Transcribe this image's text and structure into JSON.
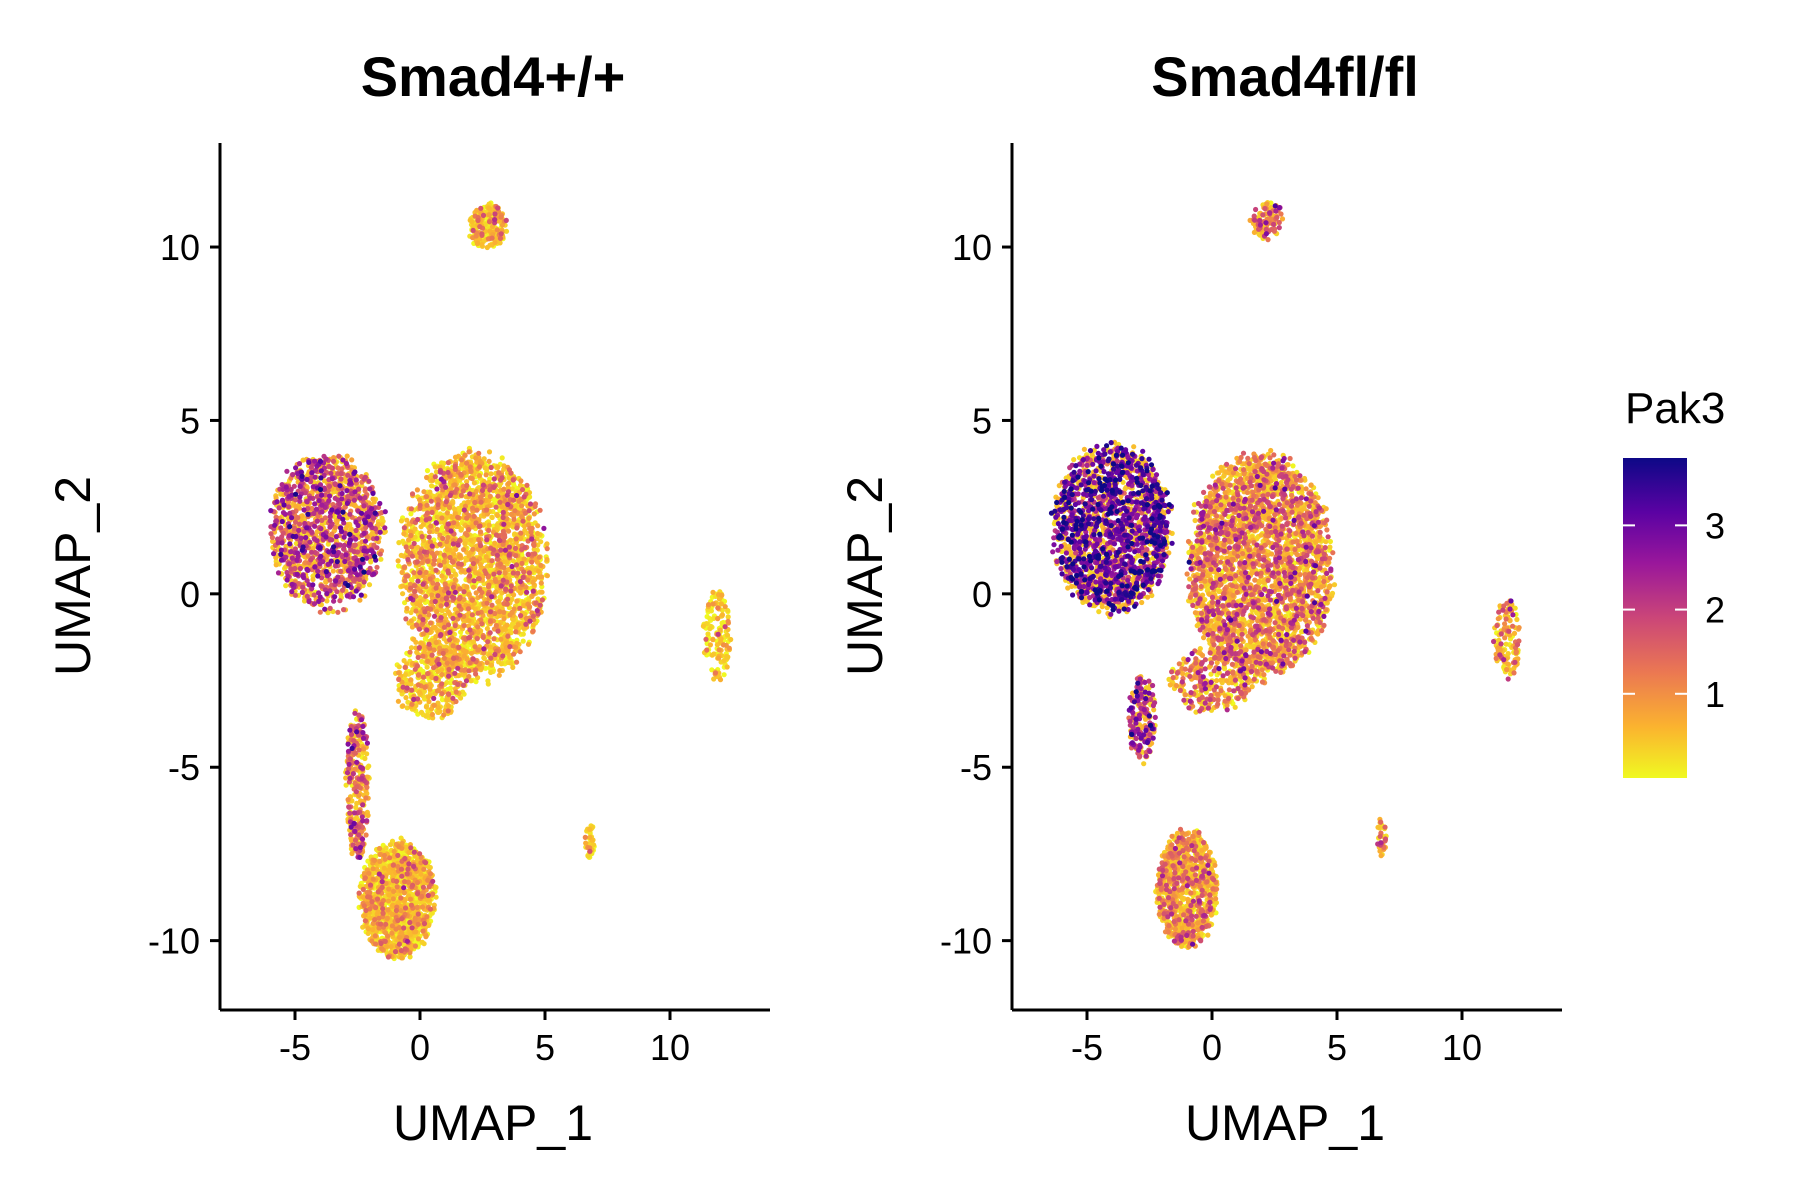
{
  "chart_data": [
    {
      "type": "scatter",
      "title": "Smad4+/+",
      "xlabel": "UMAP_1",
      "ylabel": "UMAP_2",
      "xlim": [
        -8,
        14
      ],
      "ylim": [
        -12,
        13
      ],
      "xticks": [
        -5,
        0,
        5,
        10
      ],
      "yticks": [
        -10,
        -5,
        0,
        5,
        10
      ],
      "color_variable": "Pak3",
      "clusters": [
        {
          "cx": -3.7,
          "cy": 1.8,
          "rx": 2.4,
          "ry": 2.4,
          "n": 1400,
          "mean_expr": 1.9
        },
        {
          "cx": 2.1,
          "cy": 0.8,
          "rx": 3.1,
          "ry": 3.5,
          "n": 2600,
          "mean_expr": 0.7
        },
        {
          "cx": 0.5,
          "cy": -2.5,
          "rx": 1.6,
          "ry": 1.2,
          "n": 350,
          "mean_expr": 0.7
        },
        {
          "cx": -2.5,
          "cy": -5.5,
          "rx": 0.5,
          "ry": 2.3,
          "n": 300,
          "mean_expr": 1.6
        },
        {
          "cx": -0.9,
          "cy": -8.8,
          "rx": 1.6,
          "ry": 1.8,
          "n": 1300,
          "mean_expr": 0.35
        },
        {
          "cx": 2.7,
          "cy": 10.6,
          "rx": 0.8,
          "ry": 0.7,
          "n": 220,
          "mean_expr": 0.6
        },
        {
          "cx": 11.9,
          "cy": -1.2,
          "rx": 0.6,
          "ry": 1.4,
          "n": 150,
          "mean_expr": 0.4
        },
        {
          "cx": 6.8,
          "cy": -7.1,
          "rx": 0.2,
          "ry": 0.6,
          "n": 40,
          "mean_expr": 0.4
        }
      ]
    },
    {
      "type": "scatter",
      "title": "Smad4fl/fl",
      "xlabel": "UMAP_1",
      "ylabel": "UMAP_2",
      "xlim": [
        -8,
        14
      ],
      "ylim": [
        -12,
        13
      ],
      "xticks": [
        -5,
        0,
        5,
        10
      ],
      "yticks": [
        -10,
        -5,
        0,
        5,
        10
      ],
      "color_variable": "Pak3",
      "clusters": [
        {
          "cx": -4.0,
          "cy": 1.9,
          "rx": 2.5,
          "ry": 2.6,
          "n": 1900,
          "mean_expr": 2.9
        },
        {
          "cx": 1.9,
          "cy": 0.8,
          "rx": 3.1,
          "ry": 3.4,
          "n": 3000,
          "mean_expr": 1.2
        },
        {
          "cx": 0.0,
          "cy": -2.5,
          "rx": 1.8,
          "ry": 1.0,
          "n": 300,
          "mean_expr": 1.3
        },
        {
          "cx": -2.8,
          "cy": -3.6,
          "rx": 0.6,
          "ry": 1.4,
          "n": 200,
          "mean_expr": 2.2
        },
        {
          "cx": -1.0,
          "cy": -8.5,
          "rx": 1.3,
          "ry": 1.8,
          "n": 900,
          "mean_expr": 0.9
        },
        {
          "cx": 2.2,
          "cy": 10.8,
          "rx": 0.7,
          "ry": 0.6,
          "n": 100,
          "mean_expr": 1.5
        },
        {
          "cx": 11.8,
          "cy": -1.3,
          "rx": 0.6,
          "ry": 1.2,
          "n": 120,
          "mean_expr": 1.1
        },
        {
          "cx": 6.8,
          "cy": -7.0,
          "rx": 0.2,
          "ry": 0.6,
          "n": 35,
          "mean_expr": 1.3
        }
      ]
    }
  ],
  "legend": {
    "title": "Pak3",
    "ticks": [
      "1",
      "2",
      "3"
    ],
    "tick_values": [
      1,
      2,
      3
    ],
    "range": [
      0,
      3.8
    ],
    "palette": "plasma",
    "colors": [
      "#0d0887",
      "#5b02a3",
      "#9a179b",
      "#cb4678",
      "#eb7852",
      "#fbb32f",
      "#f0f921"
    ]
  }
}
